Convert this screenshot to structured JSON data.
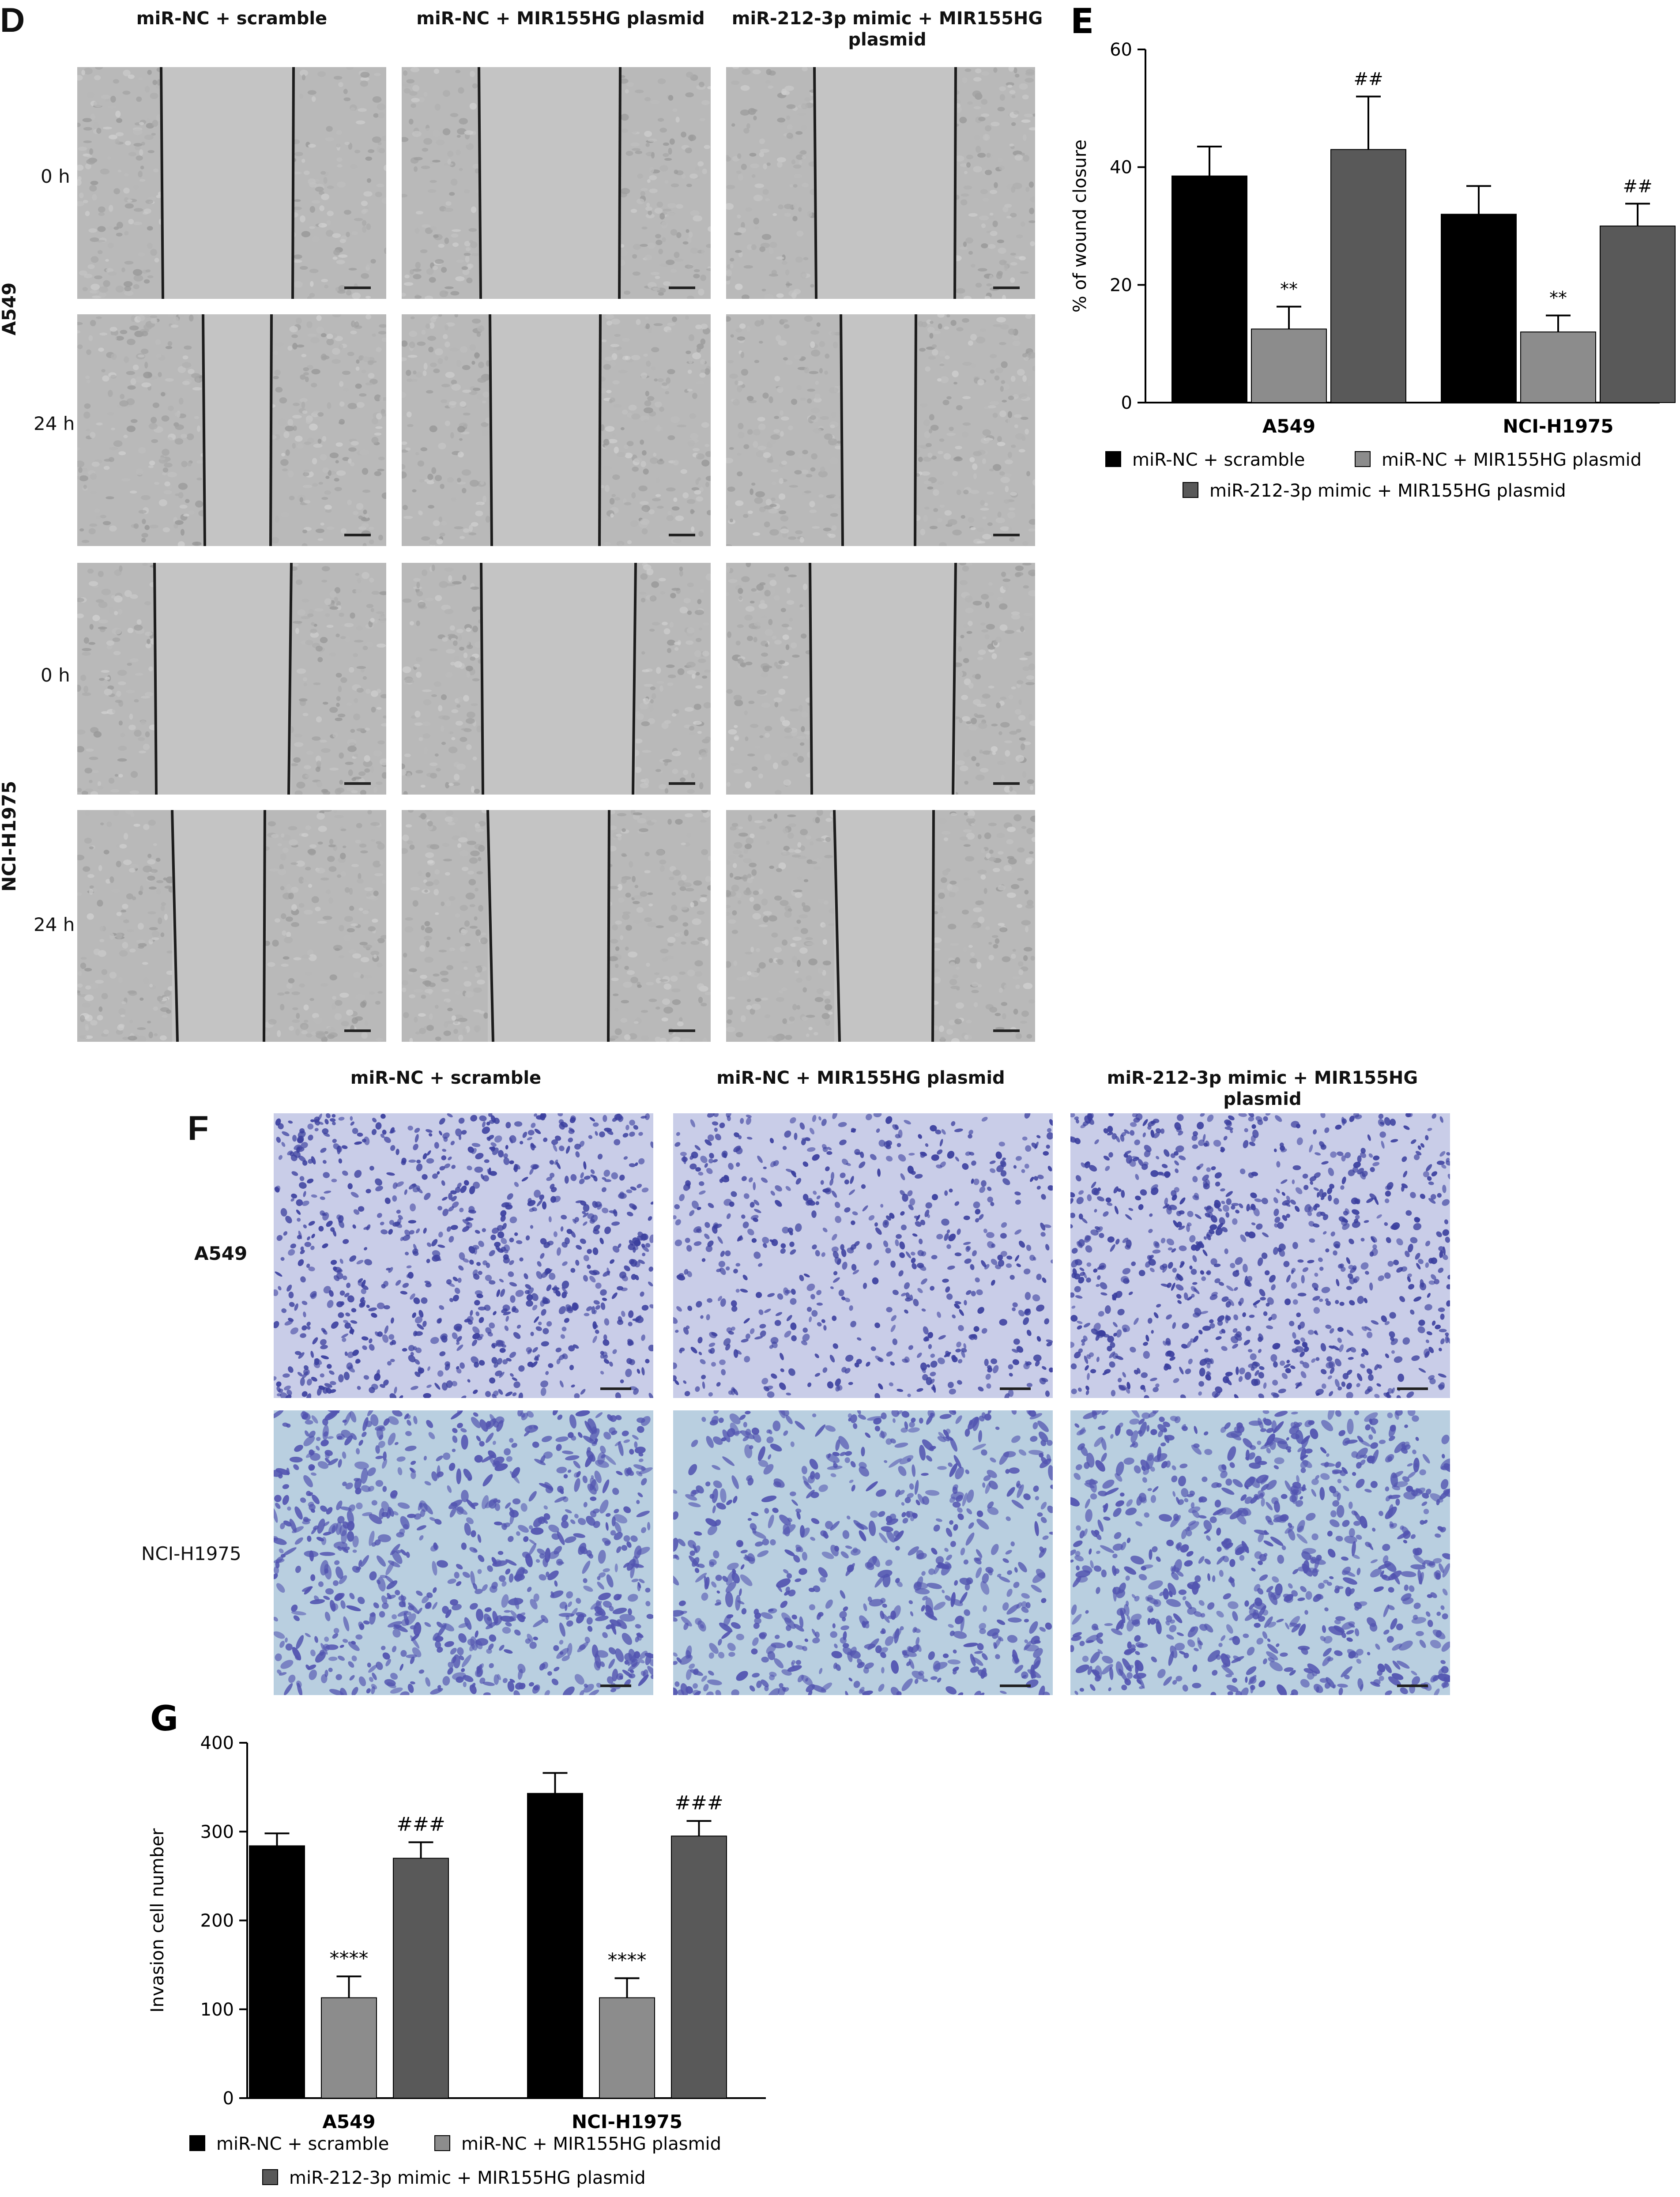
{
  "panels": {
    "D": {
      "letter": "D",
      "columns": [
        "miR-NC + scramble",
        "miR-NC + MIR155HG plasmid",
        "miR-212-3p mimic + MIR155HG plasmid"
      ],
      "cell_lines": [
        "A549",
        "NCI-H1975"
      ],
      "time_labels": [
        "0 h",
        "24 h",
        "0 h",
        "24 h"
      ]
    },
    "F": {
      "letter": "F",
      "columns": [
        "miR-NC + scramble",
        "miR-NC + MIR155HG plasmid",
        "miR-212-3p mimic + MIR155HG plasmid"
      ],
      "rows": [
        "A549",
        "NCI-H1975"
      ]
    }
  },
  "colors": {
    "scramble": "#000000",
    "plasmid": "#8c8c8c",
    "mimic": "#595959",
    "wound_bg": "#c4c4c4",
    "cell_texture": "#9a9a9a",
    "stain_a549": "#3b3f9e",
    "stain_h1975": "#5254b0",
    "transwell_bg_a549": "#c9cde8",
    "transwell_bg_h1975": "#b9cfe0"
  },
  "chart_data": [
    {
      "panel_letter": "E",
      "type": "bar",
      "categories": [
        "A549",
        "NCI-H1975"
      ],
      "ylabel": "% of wound closure",
      "ylim": [
        0,
        60
      ],
      "yticks": [
        "0",
        "20",
        "40",
        "60"
      ],
      "series": [
        {
          "name": "miR-NC + scramble",
          "values": [
            38.5,
            32
          ],
          "errors": [
            5,
            4.8
          ],
          "marks": [
            "",
            ""
          ]
        },
        {
          "name": "miR-NC + MIR155HG plasmid",
          "values": [
            12.5,
            12
          ],
          "errors": [
            3.8,
            2.8
          ],
          "marks": [
            "**",
            "**"
          ]
        },
        {
          "name": "miR-212-3p mimic + MIR155HG plasmid",
          "values": [
            43,
            30
          ],
          "errors": [
            9,
            3.8
          ],
          "marks": [
            "##",
            "##"
          ]
        }
      ]
    },
    {
      "panel_letter": "G",
      "type": "bar",
      "categories": [
        "A549",
        "NCI-H1975"
      ],
      "ylabel": "Invasion cell number",
      "ylim": [
        0,
        400
      ],
      "yticks": [
        "0",
        "100",
        "200",
        "300",
        "400"
      ],
      "series": [
        {
          "name": "miR-NC + scramble",
          "values": [
            284,
            343
          ],
          "errors": [
            14,
            23
          ],
          "marks": [
            "",
            ""
          ]
        },
        {
          "name": "miR-NC + MIR155HG plasmid",
          "values": [
            113,
            113
          ],
          "errors": [
            24,
            22
          ],
          "marks": [
            "****",
            "****"
          ]
        },
        {
          "name": "miR-212-3p mimic + MIR155HG plasmid",
          "values": [
            270,
            295
          ],
          "errors": [
            18,
            17
          ],
          "marks": [
            "###",
            "###"
          ]
        }
      ]
    }
  ]
}
